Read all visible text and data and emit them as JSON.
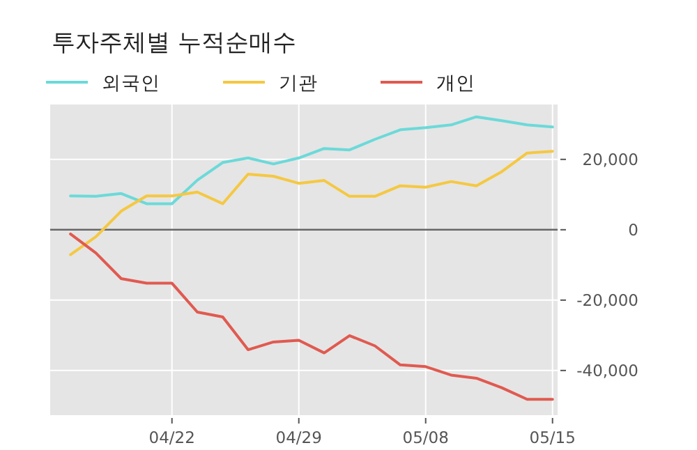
{
  "chart_data": {
    "type": "line",
    "title": "투자주체별 누적순매수",
    "categories": [
      null,
      null,
      null,
      null,
      "04/22",
      null,
      null,
      null,
      null,
      "04/29",
      null,
      null,
      null,
      null,
      "05/08",
      null,
      null,
      null,
      null,
      "05/15"
    ],
    "series": [
      {
        "name": "외국인",
        "color": "#6cd9d9",
        "values": [
          9600,
          9500,
          10300,
          7400,
          7400,
          14100,
          19100,
          20400,
          18700,
          20400,
          23100,
          22700,
          25700,
          28400,
          29000,
          29800,
          32100,
          31000,
          29800,
          29200
        ]
      },
      {
        "name": "기관",
        "color": "#f5c842",
        "values": [
          -7100,
          -2000,
          5300,
          9600,
          9600,
          10700,
          7400,
          15800,
          15200,
          13200,
          14000,
          9500,
          9500,
          12500,
          12100,
          13700,
          12500,
          16500,
          21800,
          22300
        ]
      },
      {
        "name": "개인",
        "color": "#e05a50",
        "values": [
          -1200,
          -6600,
          -13900,
          -15200,
          -15200,
          -23400,
          -24800,
          -34100,
          -31900,
          -31400,
          -35000,
          -30100,
          -33000,
          -38400,
          -38900,
          -41300,
          -42200,
          -44900,
          -48200,
          -48200
        ]
      }
    ],
    "ylim": [
      -52700,
      35600
    ],
    "yticks": [
      {
        "value": 20000,
        "label": "20,000"
      },
      {
        "value": 0,
        "label": "0"
      },
      {
        "value": -20000,
        "label": "-20,000"
      },
      {
        "value": -40000,
        "label": "-40,000"
      }
    ],
    "ref_lines": [
      {
        "axis": "y",
        "value": 0,
        "color": "#666666"
      }
    ],
    "grid": true,
    "legend": "top left"
  }
}
